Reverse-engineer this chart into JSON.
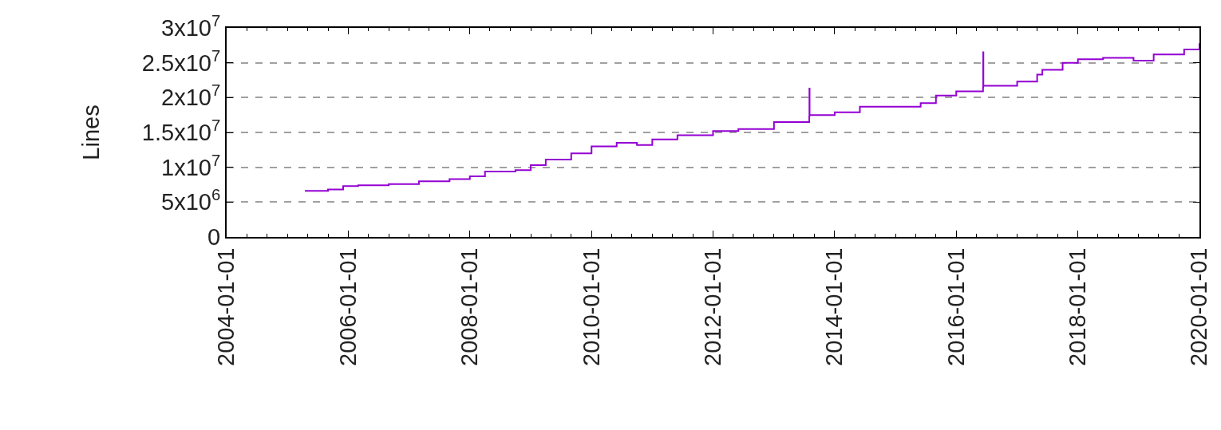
{
  "chart_data": {
    "type": "step",
    "ylabel": "Lines",
    "grid": "y",
    "legend": false,
    "marker": "none",
    "line_style": "solid",
    "x": [
      "2005-04-15",
      "2005-09-01",
      "2005-12-01",
      "2006-03-01",
      "2006-09-01",
      "2007-03-01",
      "2007-09-01",
      "2008-01-01",
      "2008-04-01",
      "2008-10-01",
      "2009-01-01",
      "2009-04-01",
      "2009-09-01",
      "2010-01-01",
      "2010-06-01",
      "2010-10-01",
      "2011-01-01",
      "2011-06-01",
      "2012-01-01",
      "2012-06-01",
      "2013-01-01",
      "2013-08-01",
      "2013-08-02",
      "2013-08-03",
      "2014-01-01",
      "2014-06-01",
      "2015-06-01",
      "2015-09-01",
      "2016-01-01",
      "2016-06-10",
      "2016-06-11",
      "2016-06-12",
      "2017-01-01",
      "2017-05-01",
      "2017-06-01",
      "2017-10-01",
      "2018-01-01",
      "2018-06-01",
      "2018-12-01",
      "2019-04-01",
      "2019-10-01",
      "2020-01-01"
    ],
    "series": [
      {
        "color": "#9400d3",
        "values": [
          6600000,
          6800000,
          7300000,
          7400000,
          7600000,
          8000000,
          8300000,
          8700000,
          9400000,
          9600000,
          10300000,
          11100000,
          12000000,
          13000000,
          13500000,
          13200000,
          14000000,
          14600000,
          15200000,
          15500000,
          16500000,
          17300000,
          21300000,
          17500000,
          17900000,
          18700000,
          19200000,
          20300000,
          20900000,
          21500000,
          26500000,
          21700000,
          22300000,
          23300000,
          24000000,
          25000000,
          25500000,
          25700000,
          25300000,
          26200000,
          26900000,
          27800000
        ]
      }
    ],
    "xlim": [
      "2004-01-01",
      "2020-01-01"
    ],
    "xticks": [
      "2004-01-01",
      "2006-01-01",
      "2008-01-01",
      "2010-01-01",
      "2012-01-01",
      "2014-01-01",
      "2016-01-01",
      "2018-01-01",
      "2020-01-01"
    ],
    "ylim": [
      0,
      30000000
    ],
    "yticks": [
      0,
      {
        "value": 5000000,
        "label": "5x10$^{6}$"
      },
      {
        "value": 10000000,
        "label": "1x10$^{7}$"
      },
      {
        "value": 15000000,
        "label": "1.5x10$^{7}$"
      },
      {
        "value": 20000000,
        "label": "2x10$^{7}$"
      },
      {
        "value": 25000000,
        "label": "2.5x10$^{7}$"
      },
      {
        "value": 30000000,
        "label": "3x10$^{7}$"
      }
    ]
  }
}
